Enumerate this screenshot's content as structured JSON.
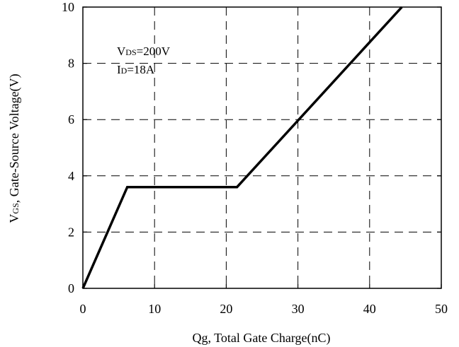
{
  "chart_data": {
    "type": "line",
    "title": "",
    "xlabel": "Qg, Total Gate Charge(nC)",
    "ylabel_main": "V",
    "ylabel_sub": "GS",
    "ylabel_rest": ", Gate-Source Voltage(V)",
    "xlim": [
      0,
      50
    ],
    "ylim": [
      0,
      10
    ],
    "xticks": [
      0,
      10,
      20,
      30,
      40,
      50
    ],
    "yticks": [
      0,
      2,
      4,
      6,
      8,
      10
    ],
    "grid": true,
    "series": [
      {
        "x": [
          0,
          6.2,
          21.5,
          44.5
        ],
        "y": [
          0,
          3.6,
          3.6,
          10
        ],
        "color": "#000000"
      }
    ],
    "annotations": [
      {
        "main": "V",
        "sub": "DS",
        "rest": "=200V"
      },
      {
        "main": "I",
        "sub": "D",
        "rest": "=18A"
      }
    ]
  }
}
